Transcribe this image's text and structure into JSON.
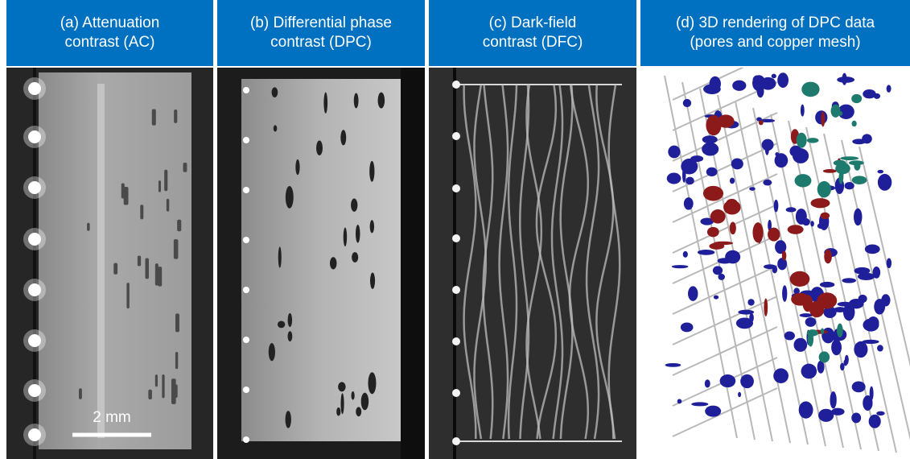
{
  "panels": [
    {
      "title_lines": [
        "(a) Attenuation",
        "contrast (AC)"
      ],
      "scale_bar": "2 mm"
    },
    {
      "title_lines": [
        "(b) Differential phase",
        "contrast (DPC)"
      ]
    },
    {
      "title_lines": [
        "(c) Dark-field",
        "contrast (DFC)"
      ]
    },
    {
      "title_lines": [
        "(d) 3D rendering of DPC data",
        "(pores and copper mesh)"
      ]
    }
  ]
}
